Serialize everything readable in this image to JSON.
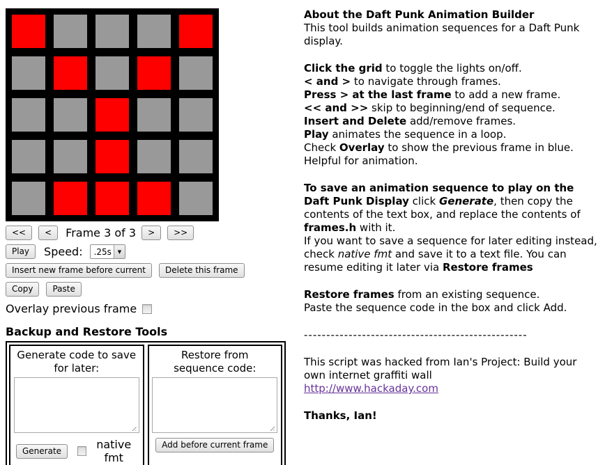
{
  "grid": {
    "rows": [
      [
        1,
        0,
        0,
        0,
        1
      ],
      [
        0,
        1,
        0,
        1,
        0
      ],
      [
        0,
        0,
        1,
        0,
        0
      ],
      [
        0,
        0,
        1,
        0,
        0
      ],
      [
        0,
        1,
        1,
        1,
        0
      ]
    ],
    "on_color": "#ff0000",
    "off_color": "#999999",
    "background": "#000000"
  },
  "controls": {
    "first": "<<",
    "prev": "<",
    "frame_label": "Frame 3 of 3",
    "next": ">",
    "last": ">>",
    "play": "Play",
    "speed_label": "Speed:",
    "speed_value": ".25s",
    "dropdown_arrow_icon": "▼",
    "insert": "Insert new frame before current",
    "delete": "Delete this frame",
    "copy": "Copy",
    "paste": "Paste",
    "overlay_label": "Overlay previous frame",
    "overlay_checked": false
  },
  "backup": {
    "heading": "Backup and Restore Tools",
    "generate_title": "Generate code to save for later:",
    "generate_value": "",
    "generate_button": "Generate",
    "native_label": "native fmt",
    "native_checked": false,
    "restore_title": "Restore from sequence code:",
    "restore_value": "",
    "add_button": "Add before current frame"
  },
  "about": {
    "title": "About the Daft Punk Animation Builder",
    "intro": "This tool builds animation sequences for a Daft Punk display.",
    "usage": {
      "click_b": "Click the grid",
      "click_t": " to toggle the lights on/off.",
      "nav_b": "< and >",
      "nav_t": " to navigate through frames.",
      "press_b": "Press > at the last frame",
      "press_t": " to add a new frame.",
      "skip_b": "<< and >>",
      "skip_t": " skip to beginning/end of sequence.",
      "insdel_b": "Insert and Delete",
      "insdel_t": " add/remove frames.",
      "play_b": "Play",
      "play_t": " animates the sequence in a loop.",
      "check_t1": "Check ",
      "check_b": "Overlay",
      "check_t2": " to show the previous frame in blue. Helpful for animation."
    },
    "save": {
      "b1": "To save an animation sequence to play on the Daft Punk Display",
      "t1": " click ",
      "i1": "Generate",
      "t2": ", then copy the contents of the text box, and replace the contents of ",
      "b2": "frames.h",
      "t3": " with it.",
      "t4": "If you want to save a sequence for later editing instead, check ",
      "i2": "native fmt",
      "t5": " and save it to a text file. You can resume editing it later via ",
      "b3": "Restore frames"
    },
    "restore": {
      "b1": "Restore frames",
      "t1": " from an existing sequence.",
      "t2": "Paste the sequence code in the box and click Add."
    },
    "divider": "--------------------------------------------------",
    "credits": {
      "line1": "This script was hacked from Ian's Project: Build your own internet graffiti wall",
      "link": "http://www.hackaday.com",
      "link_color": "#663399",
      "thanks": "Thanks, Ian!"
    }
  }
}
